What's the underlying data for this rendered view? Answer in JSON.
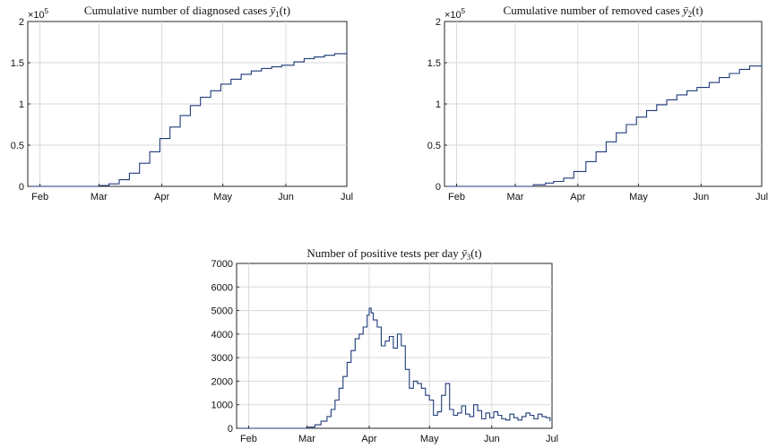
{
  "chart_data": [
    {
      "id": "c1",
      "type": "line",
      "step": true,
      "title_main": "Cumulative number of diagnosed cases ",
      "title_var": "ȳ",
      "title_sub": "1",
      "title_arg": "(t)",
      "exponent_label": "×10",
      "exponent_power": "5",
      "y_scale": 100000,
      "ylim": [
        0,
        200000
      ],
      "yticks": [
        0,
        50000,
        100000,
        150000,
        200000
      ],
      "ytick_labels": [
        "0",
        "0.5",
        "1",
        "1.5",
        "2"
      ],
      "xlim": [
        "2020-01-26",
        "2020-07-01"
      ],
      "xticks": [
        "2020-02-01",
        "2020-03-01",
        "2020-04-01",
        "2020-05-01",
        "2020-06-01",
        "2020-07-01"
      ],
      "xtick_labels": [
        "Feb",
        "Mar",
        "Apr",
        "May",
        "Jun",
        "Jul"
      ],
      "grid": true,
      "series": [
        {
          "color": "#1f3b7a",
          "x": [
            "2020-01-26",
            "2020-03-01",
            "2020-03-06",
            "2020-03-11",
            "2020-03-16",
            "2020-03-21",
            "2020-03-26",
            "2020-03-31",
            "2020-04-05",
            "2020-04-10",
            "2020-04-15",
            "2020-04-20",
            "2020-04-25",
            "2020-04-30",
            "2020-05-05",
            "2020-05-10",
            "2020-05-15",
            "2020-05-20",
            "2020-05-25",
            "2020-05-30",
            "2020-06-05",
            "2020-06-10",
            "2020-06-15",
            "2020-06-20",
            "2020-06-25",
            "2020-07-01"
          ],
          "y": [
            0,
            1000,
            3000,
            8000,
            16000,
            28000,
            42000,
            58000,
            72000,
            86000,
            98000,
            108000,
            116000,
            124000,
            130000,
            136000,
            140000,
            143000,
            145000,
            147000,
            151000,
            155000,
            157000,
            159000,
            161000,
            165000
          ]
        }
      ]
    },
    {
      "id": "c2",
      "type": "line",
      "step": true,
      "title_main": "Cumulative number of removed cases ",
      "title_var": "ȳ",
      "title_sub": "2",
      "title_arg": "(t)",
      "exponent_label": "×10",
      "exponent_power": "5",
      "y_scale": 100000,
      "ylim": [
        0,
        200000
      ],
      "yticks": [
        0,
        50000,
        100000,
        150000,
        200000
      ],
      "ytick_labels": [
        "0",
        "0.5",
        "1",
        "1.5",
        "2"
      ],
      "xlim": [
        "2020-01-26",
        "2020-07-01"
      ],
      "xticks": [
        "2020-02-01",
        "2020-03-01",
        "2020-04-01",
        "2020-05-01",
        "2020-06-01",
        "2020-07-01"
      ],
      "xtick_labels": [
        "Feb",
        "Mar",
        "Apr",
        "May",
        "Jun",
        "Jul"
      ],
      "grid": true,
      "series": [
        {
          "color": "#1f3b7a",
          "x": [
            "2020-01-26",
            "2020-03-01",
            "2020-03-10",
            "2020-03-16",
            "2020-03-20",
            "2020-03-25",
            "2020-03-30",
            "2020-04-05",
            "2020-04-10",
            "2020-04-15",
            "2020-04-20",
            "2020-04-25",
            "2020-04-30",
            "2020-05-05",
            "2020-05-10",
            "2020-05-15",
            "2020-05-20",
            "2020-05-25",
            "2020-05-30",
            "2020-06-05",
            "2020-06-10",
            "2020-06-15",
            "2020-06-20",
            "2020-06-25",
            "2020-07-01"
          ],
          "y": [
            0,
            0,
            2000,
            4000,
            6000,
            10000,
            18000,
            30000,
            42000,
            54000,
            65000,
            75000,
            84000,
            92000,
            99000,
            105000,
            111000,
            116000,
            120000,
            126000,
            132000,
            137000,
            142000,
            146000,
            150000
          ]
        }
      ]
    },
    {
      "id": "c3",
      "type": "line",
      "step": true,
      "title_main": "Number of positive tests per day ",
      "title_var": "ȳ",
      "title_sub": "3",
      "title_arg": "(t)",
      "ylim": [
        0,
        7000
      ],
      "yticks": [
        0,
        1000,
        2000,
        3000,
        4000,
        5000,
        6000,
        7000
      ],
      "ytick_labels": [
        "0",
        "1000",
        "2000",
        "3000",
        "4000",
        "5000",
        "6000",
        "7000"
      ],
      "xlim": [
        "2020-01-26",
        "2020-07-01"
      ],
      "xticks": [
        "2020-02-01",
        "2020-03-01",
        "2020-04-01",
        "2020-05-01",
        "2020-06-01",
        "2020-07-01"
      ],
      "xtick_labels": [
        "Feb",
        "Mar",
        "Apr",
        "May",
        "Jun",
        "Jul"
      ],
      "grid": true,
      "series": [
        {
          "color": "#1f3b7a",
          "x": [
            "2020-01-26",
            "2020-03-01",
            "2020-03-05",
            "2020-03-08",
            "2020-03-11",
            "2020-03-13",
            "2020-03-15",
            "2020-03-17",
            "2020-03-19",
            "2020-03-21",
            "2020-03-23",
            "2020-03-25",
            "2020-03-27",
            "2020-03-29",
            "2020-03-31",
            "2020-04-01",
            "2020-04-02",
            "2020-04-03",
            "2020-04-05",
            "2020-04-07",
            "2020-04-09",
            "2020-04-11",
            "2020-04-13",
            "2020-04-15",
            "2020-04-17",
            "2020-04-19",
            "2020-04-21",
            "2020-04-23",
            "2020-04-25",
            "2020-04-27",
            "2020-04-29",
            "2020-05-01",
            "2020-05-03",
            "2020-05-05",
            "2020-05-07",
            "2020-05-09",
            "2020-05-11",
            "2020-05-13",
            "2020-05-15",
            "2020-05-17",
            "2020-05-19",
            "2020-05-21",
            "2020-05-23",
            "2020-05-25",
            "2020-05-27",
            "2020-05-29",
            "2020-05-31",
            "2020-06-02",
            "2020-06-04",
            "2020-06-06",
            "2020-06-08",
            "2020-06-10",
            "2020-06-12",
            "2020-06-14",
            "2020-06-16",
            "2020-06-18",
            "2020-06-20",
            "2020-06-22",
            "2020-06-24",
            "2020-06-26",
            "2020-06-28",
            "2020-06-30"
          ],
          "y": [
            0,
            50,
            150,
            300,
            500,
            800,
            1200,
            1700,
            2200,
            2800,
            3300,
            3800,
            4000,
            4300,
            4800,
            5100,
            4900,
            4600,
            4300,
            3500,
            3700,
            3900,
            3400,
            4000,
            3500,
            2500,
            1700,
            2000,
            1900,
            1700,
            1400,
            1200,
            550,
            700,
            1400,
            1900,
            800,
            550,
            650,
            950,
            600,
            500,
            1000,
            750,
            400,
            650,
            450,
            700,
            550,
            400,
            350,
            600,
            450,
            350,
            500,
            650,
            550,
            400,
            600,
            500,
            450,
            300
          ]
        }
      ]
    }
  ]
}
